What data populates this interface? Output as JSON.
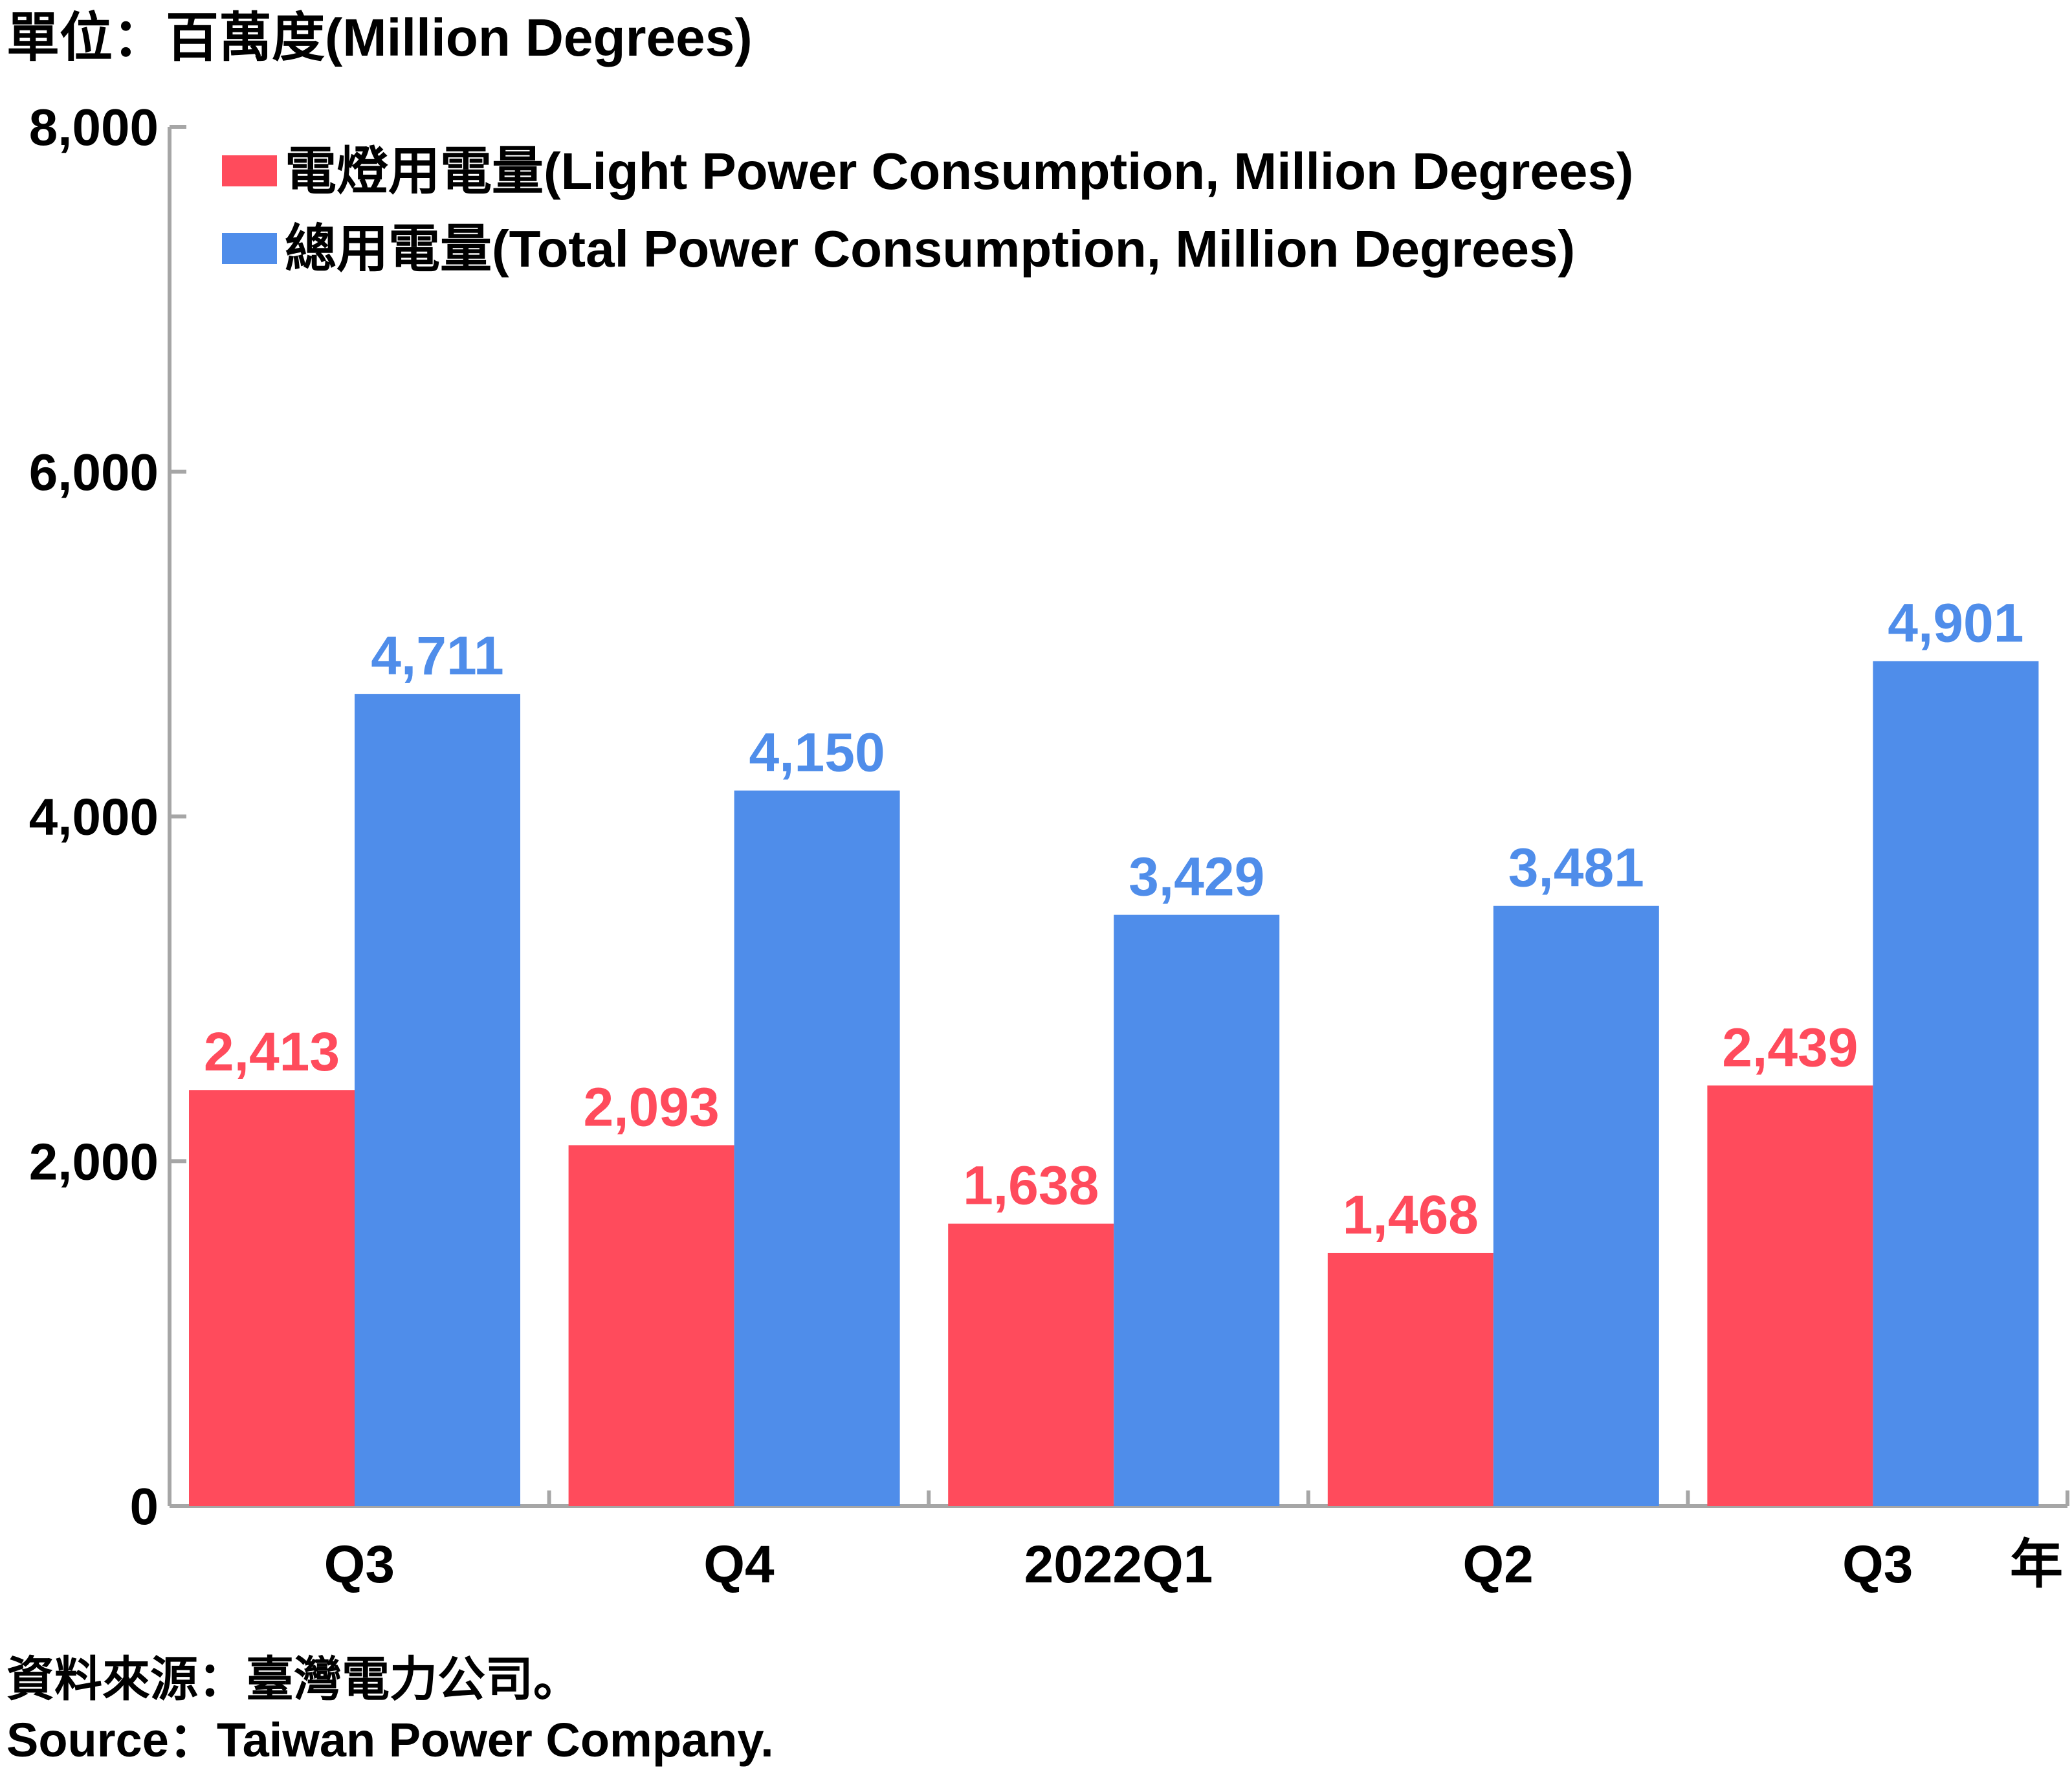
{
  "unit_label": "單位：百萬度(Million Degrees)",
  "x_axis_suffix": "年",
  "source_zh": "資料來源：臺灣電力公司。",
  "source_en": "Source：Taiwan Power Company.",
  "colors": {
    "light": "#FF4B5C",
    "total": "#4F8DEA",
    "axis": "#A6A6A6",
    "text": "#000000"
  },
  "chart_data": {
    "type": "bar",
    "title": "",
    "xlabel": "",
    "ylabel": "",
    "ylim": [
      0,
      8000
    ],
    "yticks": [
      0,
      2000,
      4000,
      6000,
      8000
    ],
    "ytick_labels": [
      "0",
      "2,000",
      "4,000",
      "6,000",
      "8,000"
    ],
    "categories": [
      "Q3",
      "Q4",
      "2022Q1",
      "Q2",
      "Q3"
    ],
    "legend_position": "top-left",
    "grid": false,
    "series": [
      {
        "key": "light",
        "name": "電燈用電量(Light Power Consumption, Million Degrees)",
        "values": [
          2413,
          2093,
          1638,
          1468,
          2439
        ],
        "labels": [
          "2,413",
          "2,093",
          "1,638",
          "1,468",
          "2,439"
        ]
      },
      {
        "key": "total",
        "name": "總用電量(Total Power Consumption, Million Degrees)",
        "values": [
          4711,
          4150,
          3429,
          3481,
          4901
        ],
        "labels": [
          "4,711",
          "4,150",
          "3,429",
          "3,481",
          "4,901"
        ]
      }
    ]
  }
}
